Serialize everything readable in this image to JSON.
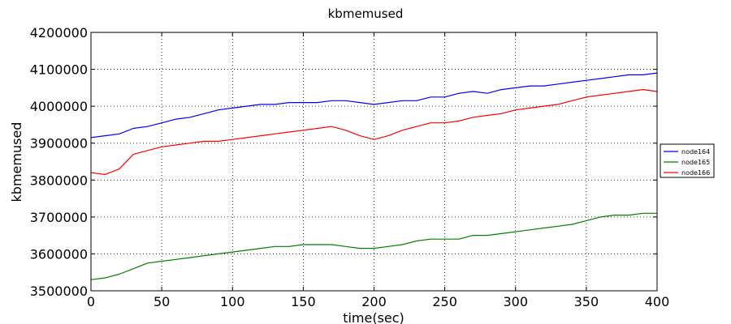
{
  "chart_data": {
    "type": "line",
    "title": "kbmemused",
    "xlabel": "time(sec)",
    "ylabel": "kbmemused",
    "xlim": [
      0,
      400
    ],
    "ylim": [
      3500000,
      4200000
    ],
    "x_ticks": [
      "0",
      "50",
      "100",
      "150",
      "200",
      "250",
      "300",
      "350",
      "400"
    ],
    "y_ticks": [
      "3500000",
      "3600000",
      "3700000",
      "3800000",
      "3900000",
      "4000000",
      "4100000",
      "4200000"
    ],
    "grid": true,
    "legend_position": "right",
    "x": [
      0,
      10,
      20,
      30,
      40,
      50,
      60,
      70,
      80,
      90,
      100,
      110,
      120,
      130,
      140,
      150,
      160,
      170,
      180,
      190,
      200,
      210,
      220,
      230,
      240,
      250,
      260,
      270,
      280,
      290,
      300,
      310,
      320,
      330,
      340,
      350,
      360,
      370,
      380,
      390,
      400
    ],
    "series": [
      {
        "name": "node164",
        "color": "#0000ff",
        "values": [
          3915000,
          3920000,
          3925000,
          3940000,
          3945000,
          3955000,
          3965000,
          3970000,
          3980000,
          3990000,
          3995000,
          4000000,
          4005000,
          4005000,
          4010000,
          4010000,
          4010000,
          4015000,
          4015000,
          4010000,
          4005000,
          4010000,
          4015000,
          4015000,
          4025000,
          4025000,
          4035000,
          4040000,
          4035000,
          4045000,
          4050000,
          4055000,
          4055000,
          4060000,
          4065000,
          4070000,
          4075000,
          4080000,
          4085000,
          4085000,
          4090000
        ]
      },
      {
        "name": "node165",
        "color": "#008000",
        "values": [
          3530000,
          3535000,
          3545000,
          3560000,
          3575000,
          3580000,
          3585000,
          3590000,
          3595000,
          3600000,
          3605000,
          3610000,
          3615000,
          3620000,
          3620000,
          3625000,
          3625000,
          3625000,
          3620000,
          3615000,
          3615000,
          3620000,
          3625000,
          3635000,
          3640000,
          3640000,
          3640000,
          3650000,
          3650000,
          3655000,
          3660000,
          3665000,
          3670000,
          3675000,
          3680000,
          3690000,
          3700000,
          3705000,
          3705000,
          3710000,
          3710000
        ]
      },
      {
        "name": "node166",
        "color": "#ff0000",
        "values": [
          3820000,
          3815000,
          3830000,
          3870000,
          3880000,
          3890000,
          3895000,
          3900000,
          3905000,
          3905000,
          3910000,
          3915000,
          3920000,
          3925000,
          3930000,
          3935000,
          3940000,
          3945000,
          3935000,
          3920000,
          3910000,
          3920000,
          3935000,
          3945000,
          3955000,
          3955000,
          3960000,
          3970000,
          3975000,
          3980000,
          3990000,
          3995000,
          4000000,
          4005000,
          4015000,
          4025000,
          4030000,
          4035000,
          4040000,
          4045000,
          4040000
        ]
      }
    ]
  }
}
